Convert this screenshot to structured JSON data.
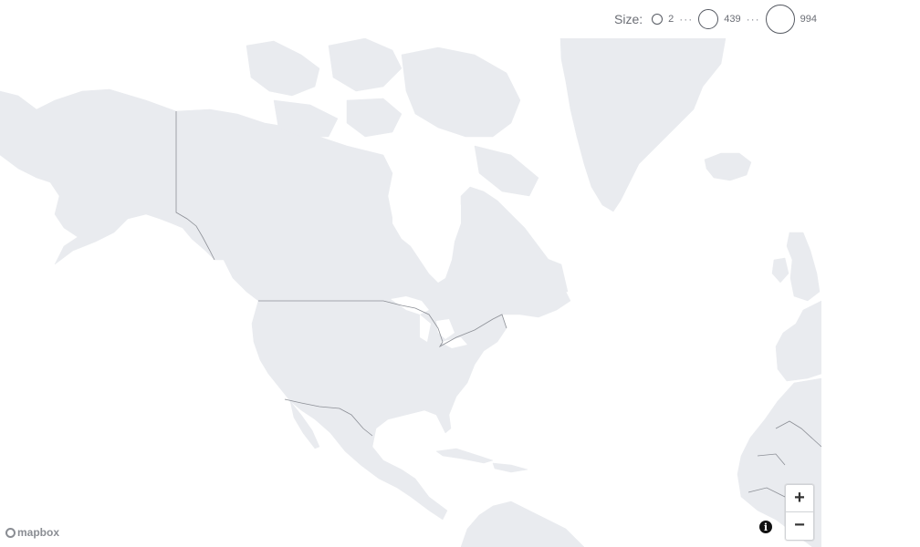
{
  "legend": {
    "title": "Size:",
    "values": [
      "2",
      "439",
      "994"
    ],
    "ellipsis": "···"
  },
  "zoom": {
    "in_label": "+",
    "out_label": "−"
  },
  "attribution": {
    "info_label": "i",
    "logo_text": "mapbox"
  },
  "colors": {
    "land": "#e9ebef",
    "border": "#8c8f96",
    "water": "#ffffff"
  }
}
